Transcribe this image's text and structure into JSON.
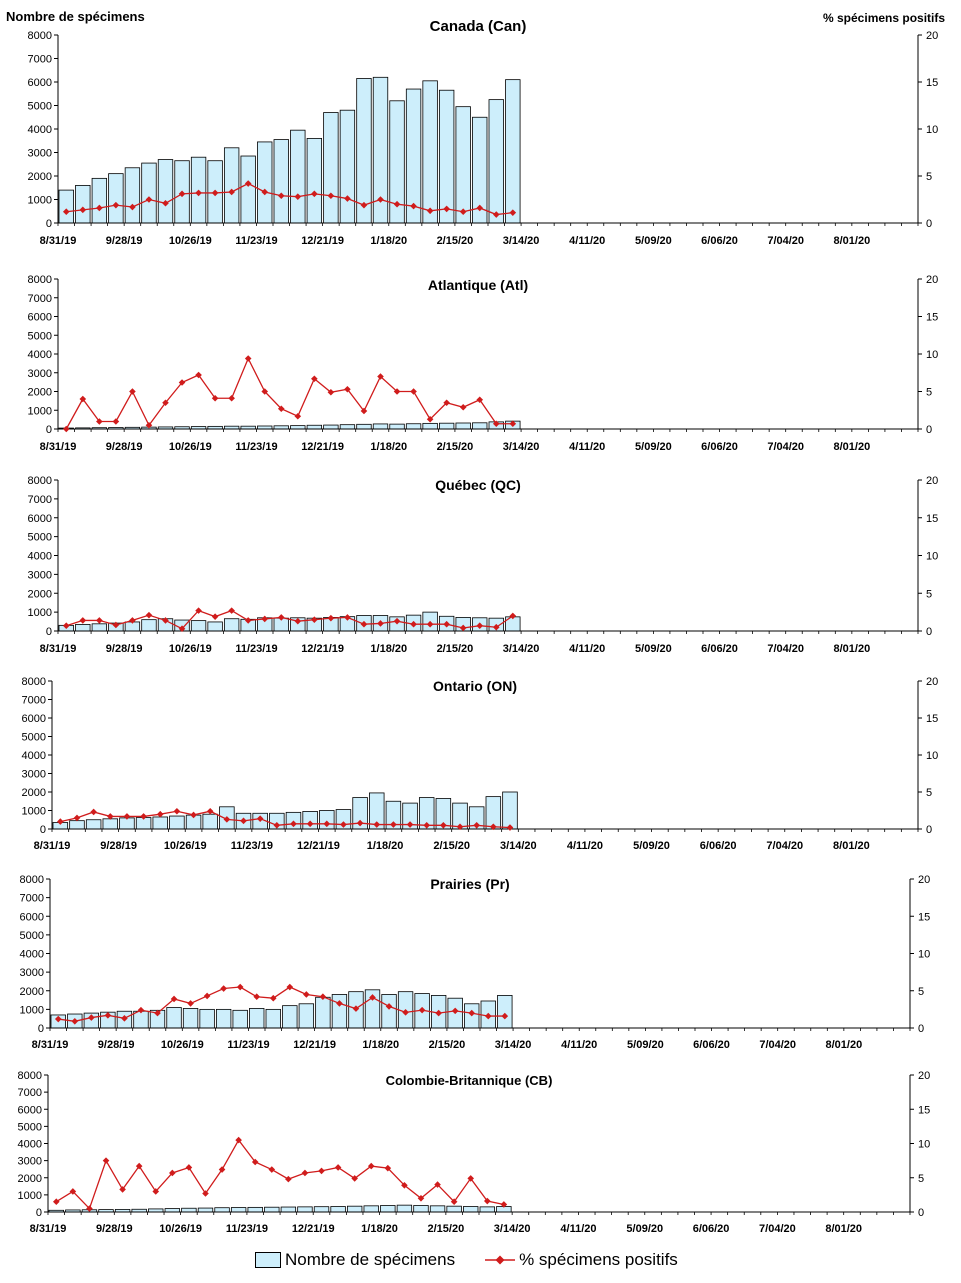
{
  "y_left_label": "Nombre de spécimens",
  "y_right_label": "% spécimens positifs",
  "legend": {
    "bars": "Nombre de spécimens",
    "line": "% spécimens positifs"
  },
  "colors": {
    "bar_fill": "#cdeefb",
    "bar_stroke": "#000000",
    "line": "#d01c1c"
  },
  "x_tick_labels": [
    "8/31/19",
    "9/28/19",
    "10/26/19",
    "11/23/19",
    "12/21/19",
    "1/18/20",
    "2/15/20",
    "3/14/20",
    "4/11/20",
    "5/09/20",
    "6/06/20",
    "7/04/20",
    "8/01/20"
  ],
  "chart_data": [
    {
      "type": "bar",
      "title": "Canada (Can)",
      "ylim": [
        0,
        8000
      ],
      "y2lim": [
        0,
        20
      ],
      "yticks": [
        "0",
        "1000",
        "2000",
        "3000",
        "4000",
        "5000",
        "6000",
        "7000",
        "8000"
      ],
      "y2ticks": [
        "0",
        "5",
        "10",
        "15",
        "20"
      ],
      "series": [
        {
          "name": "Nombre de spécimens",
          "type": "bar",
          "values": [
            1400,
            1600,
            1900,
            2100,
            2350,
            2550,
            2700,
            2650,
            2800,
            2650,
            3200,
            2850,
            3450,
            3550,
            3950,
            3600,
            4700,
            4800,
            6150,
            6200,
            5200,
            5700,
            6050,
            5650,
            4950,
            4500,
            5250,
            6100
          ]
        },
        {
          "name": "% spécimens positifs",
          "type": "line",
          "values": [
            1.2,
            1.4,
            1.6,
            1.9,
            1.7,
            2.5,
            2.1,
            3.1,
            3.2,
            3.2,
            3.3,
            4.2,
            3.3,
            2.9,
            2.8,
            3.1,
            2.9,
            2.6,
            1.9,
            2.5,
            2.0,
            1.8,
            1.3,
            1.5,
            1.2,
            1.6,
            0.9,
            1.1
          ]
        }
      ]
    },
    {
      "type": "bar",
      "title": "Atlantique (Atl)",
      "ylim": [
        0,
        8000
      ],
      "y2lim": [
        0,
        20
      ],
      "yticks": [
        "0",
        "1000",
        "2000",
        "3000",
        "4000",
        "5000",
        "6000",
        "7000",
        "8000"
      ],
      "y2ticks": [
        "0",
        "5",
        "10",
        "15",
        "20"
      ],
      "series": [
        {
          "name": "Nombre de spécimens",
          "type": "bar",
          "values": [
            50,
            60,
            70,
            80,
            90,
            100,
            110,
            120,
            130,
            140,
            150,
            150,
            160,
            170,
            180,
            200,
            210,
            230,
            250,
            270,
            260,
            280,
            300,
            310,
            320,
            330,
            380,
            420
          ]
        },
        {
          "name": "% spécimens positifs",
          "type": "line",
          "values": [
            0,
            4.0,
            1.0,
            1.0,
            5.0,
            0.5,
            3.5,
            6.2,
            7.2,
            4.1,
            4.1,
            9.4,
            5.0,
            2.7,
            1.7,
            6.7,
            4.9,
            5.3,
            2.4,
            7.0,
            5.0,
            5.0,
            1.3,
            3.5,
            2.9,
            3.9,
            0.7,
            0.7
          ]
        }
      ]
    },
    {
      "type": "bar",
      "title": "Québec (QC)",
      "ylim": [
        0,
        8000
      ],
      "y2lim": [
        0,
        20
      ],
      "yticks": [
        "0",
        "1000",
        "2000",
        "3000",
        "4000",
        "5000",
        "6000",
        "7000",
        "8000"
      ],
      "y2ticks": [
        "0",
        "5",
        "10",
        "15",
        "20"
      ],
      "series": [
        {
          "name": "Nombre de spécimens",
          "type": "bar",
          "values": [
            300,
            350,
            380,
            420,
            480,
            600,
            650,
            580,
            550,
            480,
            650,
            620,
            700,
            680,
            700,
            680,
            720,
            760,
            820,
            820,
            750,
            840,
            1000,
            780,
            720,
            700,
            680,
            750
          ]
        },
        {
          "name": "% spécimens positifs",
          "type": "line",
          "values": [
            0.7,
            1.4,
            1.4,
            0.8,
            1.4,
            2.1,
            1.4,
            0.3,
            2.7,
            1.9,
            2.7,
            1.4,
            1.6,
            1.8,
            1.3,
            1.5,
            1.7,
            1.8,
            0.9,
            1.0,
            1.3,
            0.9,
            0.9,
            0.9,
            0.4,
            0.7,
            0.5,
            2.0
          ]
        }
      ]
    },
    {
      "type": "bar",
      "title": "Ontario (ON)",
      "ylim": [
        0,
        8000
      ],
      "y2lim": [
        0,
        20
      ],
      "yticks": [
        "0",
        "1000",
        "2000",
        "3000",
        "4000",
        "5000",
        "6000",
        "7000",
        "8000"
      ],
      "y2ticks": [
        "0",
        "5",
        "10",
        "15",
        "20"
      ],
      "series": [
        {
          "name": "Nombre de spécimens",
          "type": "bar",
          "values": [
            350,
            450,
            500,
            550,
            600,
            620,
            650,
            700,
            750,
            800,
            1200,
            850,
            850,
            850,
            900,
            950,
            1000,
            1050,
            1700,
            1950,
            1500,
            1400,
            1700,
            1650,
            1400,
            1200,
            1750,
            2000
          ]
        },
        {
          "name": "% spécimens positifs",
          "type": "line",
          "values": [
            1.0,
            1.5,
            2.3,
            1.7,
            1.7,
            1.7,
            2.0,
            2.4,
            1.9,
            2.4,
            1.3,
            1.1,
            1.4,
            0.5,
            0.7,
            0.7,
            0.7,
            0.6,
            0.8,
            0.6,
            0.6,
            0.6,
            0.5,
            0.5,
            0.3,
            0.5,
            0.3,
            0.2
          ]
        }
      ]
    },
    {
      "type": "bar",
      "title": "Prairies (Pr)",
      "ylim": [
        0,
        8000
      ],
      "y2lim": [
        0,
        20
      ],
      "yticks": [
        "0",
        "1000",
        "2000",
        "3000",
        "4000",
        "5000",
        "6000",
        "7000",
        "8000"
      ],
      "y2ticks": [
        "0",
        "5",
        "10",
        "15",
        "20"
      ],
      "series": [
        {
          "name": "Nombre de spécimens",
          "type": "bar",
          "values": [
            700,
            750,
            800,
            850,
            900,
            900,
            950,
            1100,
            1050,
            1000,
            1000,
            950,
            1050,
            1000,
            1200,
            1300,
            1650,
            1800,
            1950,
            2050,
            1800,
            1950,
            1850,
            1750,
            1600,
            1300,
            1450,
            1750
          ]
        },
        {
          "name": "% spécimens positifs",
          "type": "line",
          "values": [
            1.2,
            0.9,
            1.4,
            1.7,
            1.3,
            2.4,
            2.0,
            3.9,
            3.3,
            4.3,
            5.3,
            5.5,
            4.2,
            4.0,
            5.5,
            4.5,
            4.2,
            3.3,
            2.6,
            4.1,
            2.9,
            2.1,
            2.4,
            2.0,
            2.3,
            2.0,
            1.6,
            1.6
          ]
        }
      ]
    },
    {
      "type": "bar",
      "title": "Colombie-Britannique (CB)",
      "ylim": [
        0,
        8000
      ],
      "y2lim": [
        0,
        20
      ],
      "yticks": [
        "0",
        "1000",
        "2000",
        "3000",
        "4000",
        "5000",
        "6000",
        "7000",
        "8000"
      ],
      "y2ticks": [
        "0",
        "5",
        "10",
        "15",
        "20"
      ],
      "series": [
        {
          "name": "Nombre de spécimens",
          "type": "bar",
          "values": [
            100,
            120,
            130,
            140,
            150,
            160,
            180,
            200,
            220,
            230,
            250,
            260,
            270,
            280,
            290,
            300,
            310,
            320,
            340,
            360,
            380,
            400,
            380,
            360,
            340,
            320,
            300,
            320
          ]
        },
        {
          "name": "% spécimens positifs",
          "type": "line",
          "values": [
            1.5,
            3.0,
            0.5,
            7.5,
            3.3,
            6.7,
            3.0,
            5.7,
            6.5,
            2.7,
            6.2,
            10.5,
            7.3,
            6.2,
            4.8,
            5.7,
            6.0,
            6.5,
            4.9,
            6.7,
            6.4,
            3.9,
            2.0,
            4.0,
            1.5,
            4.9,
            1.6,
            1.1
          ]
        }
      ]
    }
  ]
}
